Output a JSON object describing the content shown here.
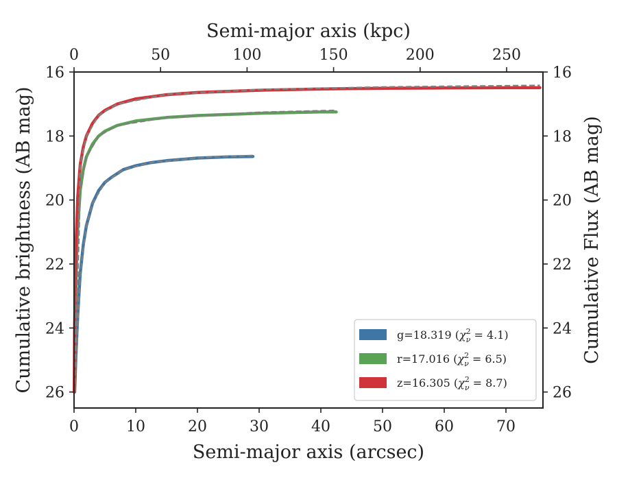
{
  "chart_data": {
    "type": "line",
    "xlabel": "Semi-major axis (arcsec)",
    "x2label": "Semi-major axis (kpc)",
    "ylabel": "Cumulative brightness (AB mag)",
    "y2label": "Cumulative Flux (AB mag)",
    "xlim": [
      0,
      76
    ],
    "x2lim": [
      0,
      271
    ],
    "ylim": [
      26.5,
      16
    ],
    "y_inverted": true,
    "xticks": [
      0,
      10,
      20,
      30,
      40,
      50,
      60,
      70
    ],
    "x2ticks": [
      0,
      50,
      100,
      150,
      200,
      250
    ],
    "yticks": [
      16,
      18,
      20,
      22,
      24,
      26
    ],
    "grid": false,
    "legend_position": "lower-right",
    "model_line_style": "dashed",
    "model_color": "#7f7f7f",
    "series": [
      {
        "band": "g",
        "name": "g=18.319",
        "chi_label": "χ",
        "chi_sub": "ν",
        "chi_sup": "2",
        "chi_value": "4.1",
        "color": "#3e76a6",
        "x": [
          0.1,
          0.3,
          0.6,
          1.0,
          1.5,
          2.0,
          3.0,
          4.0,
          5.0,
          6.0,
          8.0,
          10.0,
          12.5,
          15.0,
          20.0,
          25.0,
          29.0
        ],
        "y": [
          26.0,
          24.9,
          23.6,
          22.3,
          21.4,
          20.8,
          20.1,
          19.7,
          19.45,
          19.3,
          19.05,
          18.93,
          18.83,
          18.77,
          18.69,
          18.65,
          18.64
        ],
        "model_x": [
          0.1,
          1.0,
          2.0,
          3.0,
          5.0,
          8.0,
          12.5,
          20.0,
          29.0
        ],
        "model_y": [
          26.0,
          22.3,
          20.8,
          20.1,
          19.45,
          19.05,
          18.83,
          18.68,
          18.61
        ]
      },
      {
        "band": "r",
        "name": "r=17.016",
        "chi_label": "χ",
        "chi_sub": "ν",
        "chi_sup": "2",
        "chi_value": "6.5",
        "color": "#5aa354",
        "x": [
          0.05,
          0.2,
          0.5,
          1.0,
          1.5,
          2.0,
          3.0,
          4.0,
          5.0,
          7.0,
          10.0,
          15.0,
          20.0,
          30.0,
          40.0,
          42.5
        ],
        "y": [
          26.0,
          23.6,
          21.2,
          19.7,
          19.05,
          18.65,
          18.25,
          18.0,
          17.85,
          17.67,
          17.53,
          17.42,
          17.36,
          17.29,
          17.25,
          17.25
        ],
        "model_x": [
          0.05,
          1.0,
          2.0,
          4.0,
          7.0,
          15.0,
          30.0,
          42.5
        ],
        "model_y": [
          26.0,
          19.7,
          18.65,
          18.0,
          17.67,
          17.42,
          17.26,
          17.2
        ]
      },
      {
        "band": "z",
        "name": "z=16.305",
        "chi_label": "χ",
        "chi_sub": "ν",
        "chi_sup": "2",
        "chi_value": "8.7",
        "color": "#d0343a",
        "x": [
          0.03,
          0.1,
          0.3,
          0.6,
          1.0,
          1.5,
          2.0,
          3.0,
          4.0,
          5.0,
          7.0,
          10.0,
          15.0,
          20.0,
          30.0,
          40.0,
          50.0,
          60.0,
          70.0,
          75.5
        ],
        "y": [
          26.0,
          23.9,
          21.5,
          19.9,
          18.9,
          18.35,
          18.0,
          17.6,
          17.35,
          17.2,
          17.0,
          16.84,
          16.71,
          16.64,
          16.57,
          16.53,
          16.51,
          16.5,
          16.49,
          16.49
        ],
        "model_x": [
          0.03,
          1.0,
          2.0,
          4.0,
          7.0,
          15.0,
          30.0,
          50.0,
          75.5
        ],
        "model_y": [
          26.0,
          18.9,
          18.0,
          17.35,
          17.0,
          16.7,
          16.55,
          16.47,
          16.42
        ]
      }
    ]
  }
}
